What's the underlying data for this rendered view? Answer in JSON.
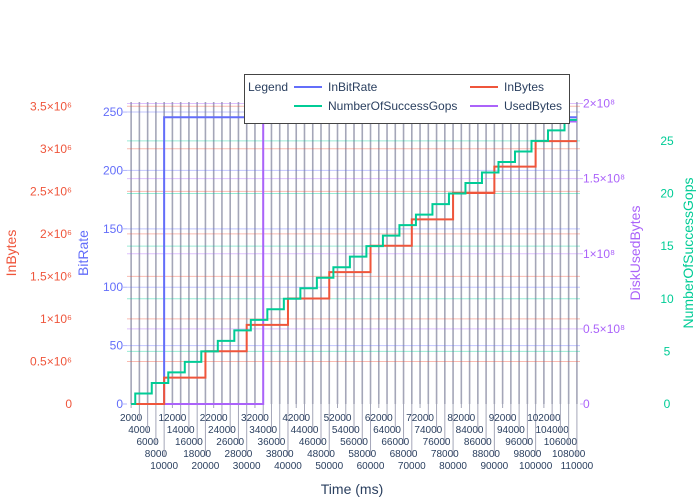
{
  "chart_data": {
    "type": "line",
    "xlabel": "Time (ms)",
    "xlim": [
      1000,
      110750
    ],
    "xticks": [
      2000,
      4000,
      6000,
      8000,
      10000,
      12000,
      14000,
      16000,
      18000,
      20000,
      22000,
      24000,
      26000,
      28000,
      30000,
      32000,
      34000,
      36000,
      38000,
      40000,
      42000,
      44000,
      46000,
      48000,
      50000,
      52000,
      54000,
      56000,
      58000,
      60000,
      62000,
      64000,
      66000,
      68000,
      70000,
      72000,
      74000,
      76000,
      78000,
      80000,
      82000,
      84000,
      86000,
      88000,
      90000,
      92000,
      94000,
      96000,
      98000,
      100000,
      102000,
      104000,
      106000,
      108000,
      110000
    ],
    "grid": true,
    "legend": {
      "title": "Legend",
      "placement": "top-center",
      "entries": [
        "InBitRate",
        "InBytes",
        "NumberOfSuccessGops",
        "UsedBytes"
      ]
    },
    "axes": {
      "inbytes": {
        "label": "InBytes",
        "side": "left",
        "color": "#ef553b",
        "range": [
          0,
          3550000
        ],
        "ticks": [
          0,
          500000,
          1000000,
          1500000,
          2000000,
          2500000,
          3000000,
          3500000
        ],
        "ticklabels": [
          "0",
          "0.5×10⁶",
          "1×10⁶",
          "1.5×10⁶",
          "2×10⁶",
          "2.5×10⁶",
          "3×10⁶",
          "3.5×10⁶"
        ]
      },
      "bitrate": {
        "label": "BitRate",
        "side": "left",
        "color": "#636efa",
        "range": [
          0,
          258.6
        ],
        "ticks": [
          0,
          50,
          100,
          150,
          200,
          250
        ],
        "ticklabels": [
          "0",
          "50",
          "100",
          "150",
          "200",
          "250"
        ]
      },
      "disk": {
        "label": "DiskUsedBytes",
        "side": "right",
        "color": "#ab63fa",
        "range": [
          0,
          201000000
        ],
        "ticks": [
          0,
          50000000,
          100000000,
          150000000,
          200000000
        ],
        "ticklabels": [
          "0",
          "0.5×10⁸",
          "1×10⁸",
          "1.5×10⁸",
          "2×10⁸"
        ]
      },
      "gops": {
        "label": "NumberOfSuccessGops",
        "side": "right",
        "color": "#00cc96",
        "range": [
          0,
          28.7
        ],
        "ticks": [
          0,
          5,
          10,
          15,
          20,
          25
        ],
        "ticklabels": [
          "0",
          "5",
          "10",
          "15",
          "20",
          "25"
        ]
      }
    },
    "series": [
      {
        "name": "InBitRate",
        "axis": "bitrate",
        "color": "#636efa",
        "shape": "hv",
        "x": [
          2000,
          10000,
          110000
        ],
        "y": [
          0,
          245.5,
          245.5
        ]
      },
      {
        "name": "InBytes",
        "axis": "inbytes",
        "color": "#ef553b",
        "shape": "hv",
        "x": [
          2000,
          10000,
          20000,
          30000,
          40000,
          50000,
          60000,
          70000,
          80000,
          90000,
          100000,
          110000
        ],
        "y": [
          0,
          310000,
          620000,
          930000,
          1240000,
          1550000,
          1860000,
          2170000,
          2480000,
          2790000,
          3090000,
          3090000
        ]
      },
      {
        "name": "NumberOfSuccessGops",
        "axis": "gops",
        "color": "#00cc96",
        "shape": "hv",
        "x": [
          2000,
          3000,
          7000,
          11000,
          15000,
          19000,
          23000,
          27000,
          31000,
          35000,
          39000,
          43000,
          47000,
          51000,
          55000,
          59000,
          63000,
          67000,
          71000,
          75000,
          79000,
          83000,
          87000,
          91000,
          95000,
          99000,
          103000,
          107000,
          110000
        ],
        "y": [
          0,
          1,
          2,
          3,
          4,
          5,
          6,
          7,
          8,
          9,
          10,
          11,
          12,
          13,
          14,
          15,
          16,
          17,
          18,
          19,
          20,
          21,
          22,
          23,
          24,
          25,
          26,
          27,
          27
        ]
      },
      {
        "name": "UsedBytes",
        "axis": "disk",
        "color": "#ab63fa",
        "shape": "hv",
        "x": [
          2000,
          34000,
          110000
        ],
        "y": [
          0,
          188000000,
          188000000
        ]
      }
    ]
  }
}
